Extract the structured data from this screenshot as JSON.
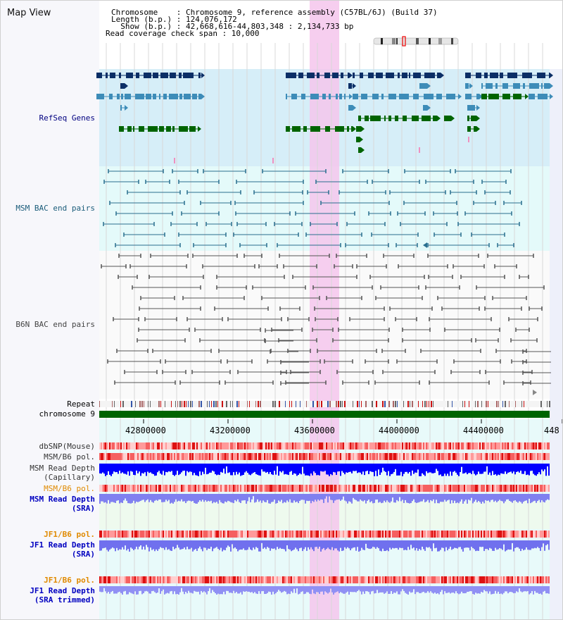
{
  "title": "Map View",
  "header": {
    "chromosome_line": "Chromosome    : Chromosome 9, reference assembly (C57BL/6J) (Build 37)",
    "length_line": "Length (b.p.) : 124,076,172",
    "show_line": "  Show (b.p.) : 42,668,616-44,803,348 : 2,134,733 bp",
    "coverage_line": "Read coverage check span : 10,000"
  },
  "tracks": {
    "refseq": {
      "label": "RefSeq Genes",
      "color": "#000080"
    },
    "msm_bac": {
      "label": "MSM BAC end pairs",
      "color": "#1a5c7a"
    },
    "b6n_bac": {
      "label": "B6N BAC end pairs",
      "color": "#444444"
    },
    "repeat": {
      "label": "Repeat",
      "color": "#000000"
    },
    "chromosome": {
      "label": "chromosome 9",
      "color": "#000000"
    },
    "dbsnp": {
      "label": "dbSNP(Mouse)",
      "color": "#333333"
    },
    "msm_pol": {
      "label": "MSM/B6 pol.",
      "color": "#333333"
    },
    "msm_depth_cap": {
      "label": "MSM Read Depth",
      "label2": "(Capillary)",
      "color": "#333333"
    },
    "msm_pol_sra": {
      "label": "MSM/B6 pol.",
      "color": "#e08a00"
    },
    "msm_depth_sra": {
      "label": "MSM Read Depth",
      "label2": "(SRA)",
      "color": "#0000c0"
    },
    "jf1_pol": {
      "label": "JF1/B6 pol.",
      "color": "#e08a00"
    },
    "jf1_depth": {
      "label": "JF1 Read Depth",
      "label2": "(SRA)",
      "color": "#0000c0"
    },
    "jf1_pol2": {
      "label": "JF1/B6 pol.",
      "color": "#e08a00"
    },
    "jf1_depth_trim": {
      "label": "JF1 Read Depth",
      "label2": "(SRA trimmed)",
      "color": "#0000c0"
    }
  },
  "axis": {
    "ticks": [
      "42800000",
      "43200000",
      "43600000",
      "44000000",
      "44400000",
      "448"
    ]
  },
  "colors": {
    "highlight": "#f5c6ec",
    "refseq_bg": "#d6eef8",
    "msm_bg": "#e4fafa",
    "gene_dark": "#0b2e66",
    "gene_mid": "#3d8cb8",
    "gene_green": "#006400",
    "chromosome": "#006400",
    "depth_blue": "#0000ff",
    "pol_red": "#ee2222"
  }
}
